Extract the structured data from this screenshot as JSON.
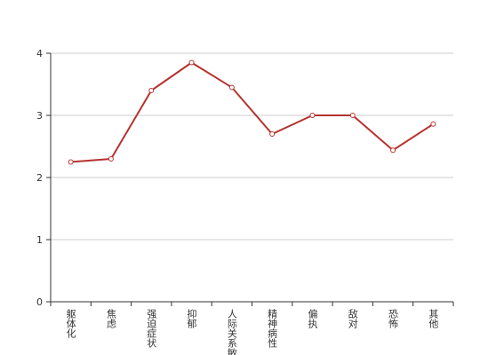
{
  "chart_data": {
    "type": "line",
    "categories": [
      "躯体化",
      "焦虑",
      "强迫症状",
      "抑郁",
      "人际关系敏感",
      "精神病性",
      "偏执",
      "敌对",
      "恐怖",
      "其他"
    ],
    "values": [
      2.25,
      2.3,
      3.4,
      3.85,
      3.45,
      2.7,
      3.0,
      3.0,
      2.44,
      2.86
    ],
    "color": "#b5332f",
    "ylim": [
      0,
      4
    ],
    "yticks": [
      0,
      1,
      2,
      3,
      4
    ],
    "grid": true
  }
}
